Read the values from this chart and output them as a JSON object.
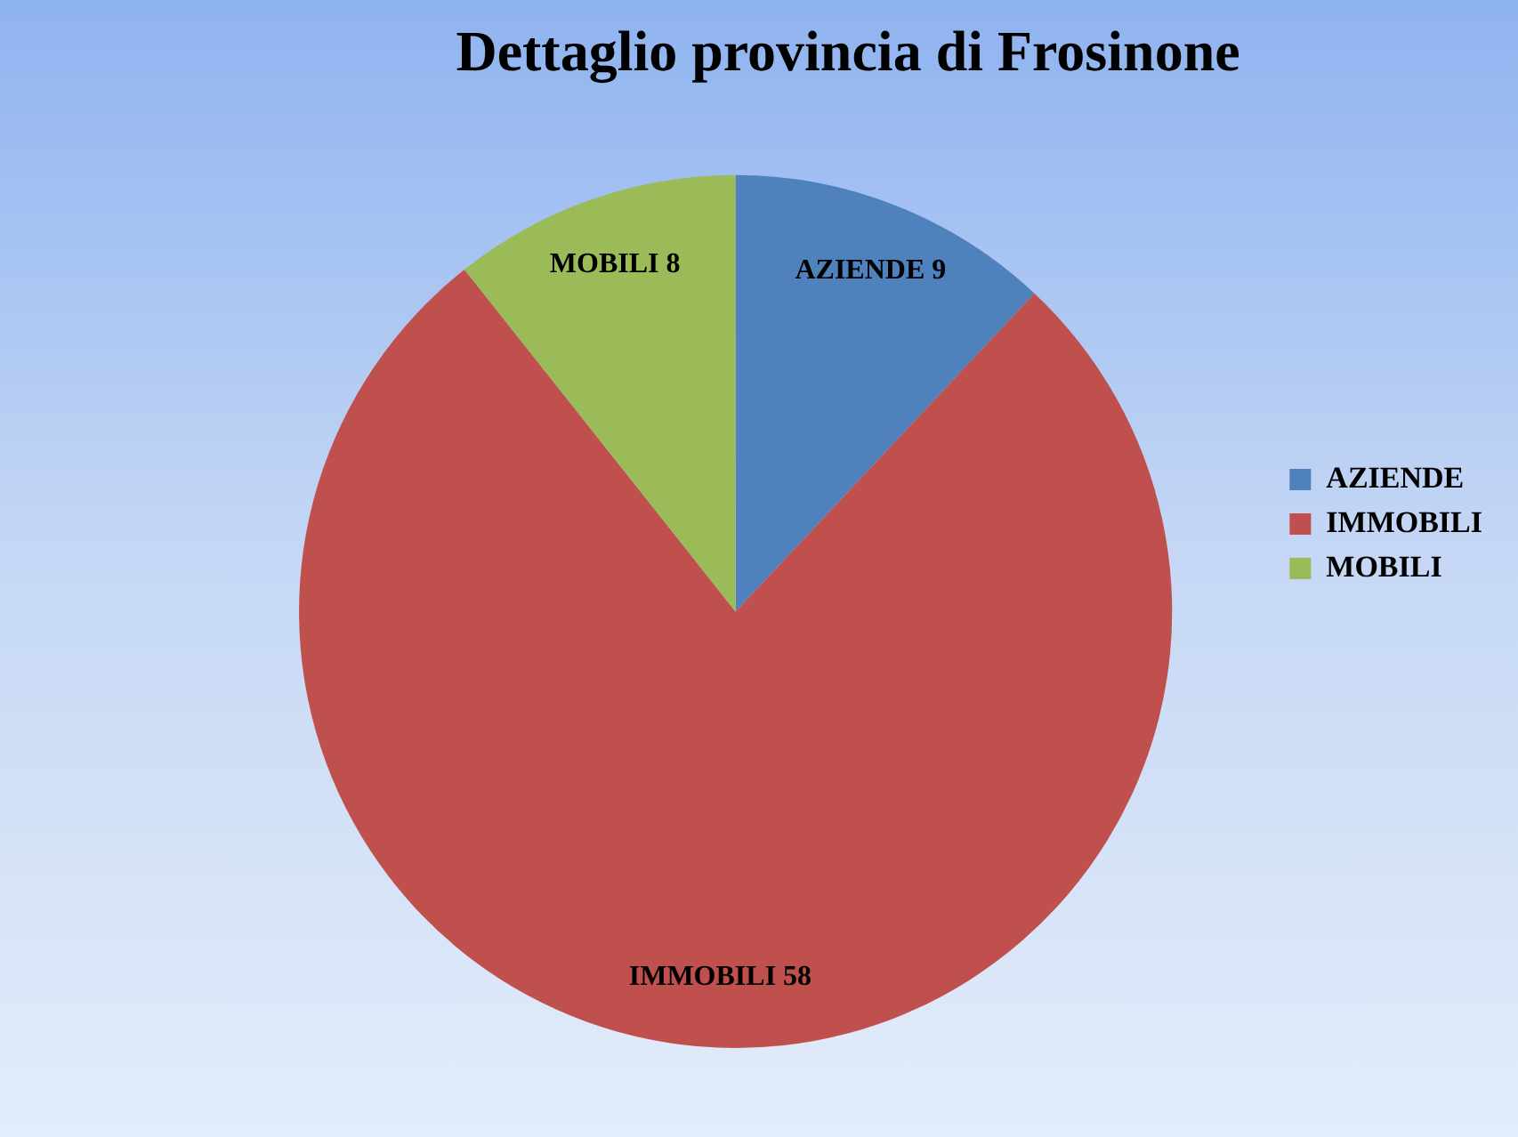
{
  "chart_data": {
    "type": "pie",
    "title": "Dettaglio provincia di Frosinone",
    "categories": [
      "AZIENDE",
      "IMMOBILI",
      "MOBILI"
    ],
    "values": [
      9,
      58,
      8
    ],
    "colors": [
      "#4f81bd",
      "#c0504d",
      "#9bbb59"
    ],
    "value_labels": [
      "AZIENDE 9",
      "IMMOBILI 58",
      "MOBILI 8"
    ],
    "legend": "right"
  }
}
